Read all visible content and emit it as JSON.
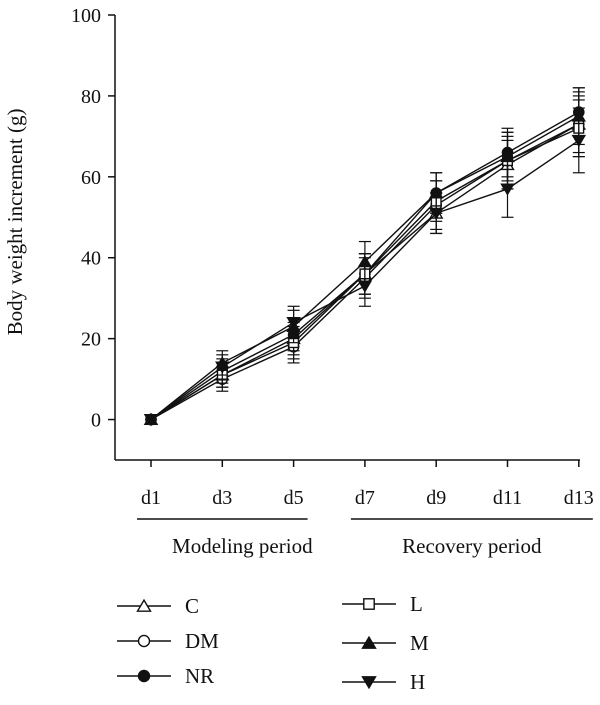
{
  "chart_data": {
    "type": "line",
    "title": "",
    "ylabel": "Body weight increment (g)",
    "xlabel": "",
    "ylim": [
      -10,
      100
    ],
    "yticks": [
      0,
      20,
      40,
      60,
      80,
      100
    ],
    "categories": [
      "d1",
      "d3",
      "d5",
      "d7",
      "d9",
      "d11",
      "d13"
    ],
    "groups": [
      {
        "label": "Modeling period",
        "from": "d1",
        "to": "d5"
      },
      {
        "label": "Recovery period",
        "from": "d7",
        "to": "d13"
      }
    ],
    "series": [
      {
        "name": "C",
        "marker": "triangle-open",
        "values": [
          0,
          11,
          20,
          36,
          51,
          63,
          73
        ],
        "errors": [
          0,
          3,
          4,
          5,
          5,
          6,
          7
        ]
      },
      {
        "name": "DM",
        "marker": "circle-open",
        "values": [
          0,
          10,
          18,
          35,
          53,
          64,
          73
        ],
        "errors": [
          0,
          3,
          4,
          5,
          6,
          7,
          8
        ]
      },
      {
        "name": "NR",
        "marker": "circle-filled",
        "values": [
          0,
          12,
          21,
          36,
          56,
          66,
          76
        ],
        "errors": [
          0,
          3,
          4,
          5,
          5,
          6,
          6
        ]
      },
      {
        "name": "L",
        "marker": "square-open",
        "values": [
          0,
          11,
          19,
          36,
          54,
          64,
          72
        ],
        "errors": [
          0,
          3,
          4,
          5,
          5,
          6,
          7
        ]
      },
      {
        "name": "M",
        "marker": "triangle-filled",
        "values": [
          0,
          14,
          23,
          39,
          56,
          65,
          75
        ],
        "errors": [
          0,
          3,
          4,
          5,
          5,
          6,
          7
        ]
      },
      {
        "name": "H",
        "marker": "triangle-down-filled",
        "values": [
          0,
          13,
          24,
          33,
          51,
          57,
          69
        ],
        "errors": [
          0,
          3,
          4,
          5,
          5,
          7,
          8
        ]
      }
    ],
    "legend_position": "bottom",
    "grid": false
  }
}
